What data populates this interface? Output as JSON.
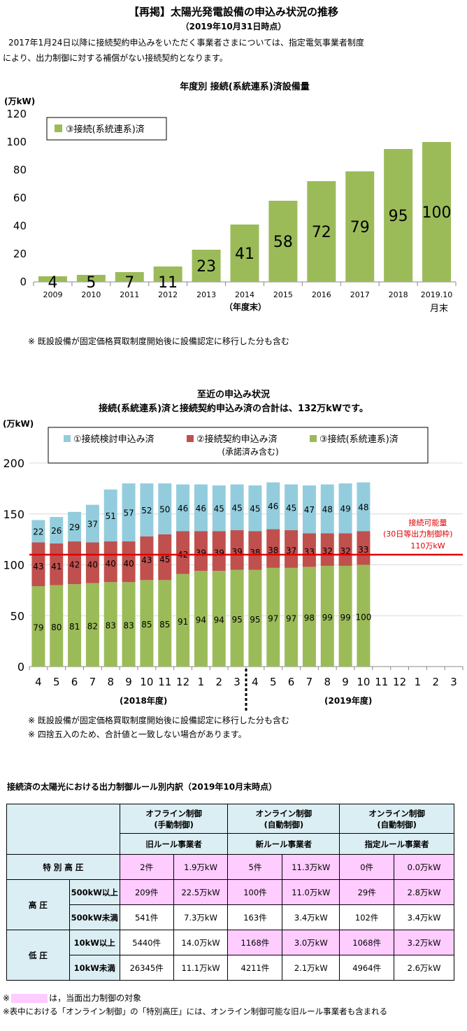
{
  "header": {
    "title": "【再掲】太陽光発電設備の申込み状況の推移",
    "date": "（2019年10月31日時点）",
    "note_line1": "2017年1月24日以降に接続契約申込みをいただく事業者さまについては、指定電気事業者制度",
    "note_line2": "により、出力制御に対する補償がない接続契約となります。"
  },
  "chart1": {
    "title": "年度別  接続(系統連系)済設備量",
    "unit": "(万kW)",
    "footnote": "※  既設設備が固定価格買取制度開始後に設備認定に移行した分も含む",
    "xsub": "（年度末）",
    "last_sub": "月末"
  },
  "chart2": {
    "title_line1": "至近の申込み状況",
    "title_line2": "接続(系統連系)済と接続契約申込み済の合計は、132万kWです。",
    "unit": "(万kW)",
    "legend_sub": "(承諾済み含む)",
    "capacity_label1": "接続可能量",
    "capacity_label2": "(30日等出力制御枠)",
    "capacity_label3": "110万kW",
    "fy1": "(2018年度)",
    "fy2": "(2019年度)",
    "footnote1": "※  既設設備が固定価格買取制度開始後に設備認定に移行した分も含む",
    "footnote2": "※  四捨五入のため、合計値と一致しない場合があります。"
  },
  "colors": {
    "green": "#9bbb59",
    "red": "#c0504d",
    "blue": "#93cddd",
    "line": "#e00000",
    "pink": "#ffccff",
    "header_blue": "#dbeef3"
  },
  "chart_data": [
    {
      "type": "bar",
      "title": "年度別  接続(系統連系)済設備量",
      "ylabel": "(万kW)",
      "xlabel": "（年度末）",
      "categories": [
        "2009",
        "2010",
        "2011",
        "2012",
        "2013",
        "2014",
        "2015",
        "2016",
        "2017",
        "2018",
        "2019.10"
      ],
      "series": [
        {
          "name": "③接続(系統連系)済",
          "values": [
            4,
            5,
            7,
            11,
            23,
            41,
            58,
            72,
            79,
            95,
            100
          ]
        }
      ],
      "ylim": [
        0,
        120
      ],
      "yticks": [
        0,
        20,
        40,
        60,
        80,
        100,
        120
      ],
      "grid": false,
      "legend": "top-left"
    },
    {
      "type": "bar",
      "stacked": true,
      "title": "至近の申込み状況",
      "ylabel": "(万kW)",
      "categories": [
        "4",
        "5",
        "6",
        "7",
        "8",
        "9",
        "10",
        "11",
        "12",
        "1",
        "2",
        "3",
        "4",
        "5",
        "6",
        "7",
        "8",
        "9",
        "10",
        "11",
        "12",
        "1",
        "2",
        "3"
      ],
      "series": [
        {
          "name": "③接続(系統連系)済",
          "values": [
            79,
            80,
            81,
            82,
            83,
            83,
            85,
            85,
            91,
            94,
            94,
            95,
            95,
            97,
            97,
            98,
            99,
            99,
            100,
            null,
            null,
            null,
            null,
            null
          ]
        },
        {
          "name": "②接続契約申込み済",
          "values": [
            43,
            41,
            42,
            40,
            40,
            40,
            43,
            45,
            42,
            39,
            39,
            39,
            38,
            38,
            37,
            33,
            32,
            32,
            33,
            null,
            null,
            null,
            null,
            null
          ]
        },
        {
          "name": "①接続検討申込み済",
          "values": [
            22,
            26,
            29,
            37,
            51,
            57,
            52,
            50,
            46,
            46,
            45,
            45,
            45,
            46,
            45,
            47,
            48,
            49,
            48,
            null,
            null,
            null,
            null,
            null
          ]
        }
      ],
      "reference_line": {
        "value": 110,
        "label": "110万kW"
      },
      "ylim": [
        0,
        200
      ],
      "yticks": [
        0,
        50,
        100,
        150,
        200
      ],
      "grid": true,
      "legend": "top"
    }
  ],
  "table": {
    "title": "接続済の太陽光における出力制御ルール別内訳（2019年10月末時点）",
    "groups": [
      {
        "line1": "オフライン制御",
        "line2": "(手動制御)",
        "sub": "旧ルール事業者"
      },
      {
        "line1": "オンライン制御",
        "line2": "(自動制御)",
        "sub": "新ルール事業者"
      },
      {
        "line1": "オンライン制御",
        "line2": "(自動制御)",
        "sub": "指定ルール事業者"
      }
    ],
    "cat_tokubetsu": "特 別 高 圧",
    "cat_kouatsu": "高  圧",
    "cat_teiatsu": "低  圧",
    "rows": [
      {
        "label": "",
        "cells": [
          "2件",
          "1.9万kW",
          "5件",
          "11.3万kW",
          "0件",
          "0.0万kW"
        ]
      },
      {
        "label": "500kW以上",
        "cells": [
          "209件",
          "22.5万kW",
          "100件",
          "11.0万kW",
          "29件",
          "2.8万kW"
        ]
      },
      {
        "label": "500kW未満",
        "cells": [
          "541件",
          "7.3万kW",
          "163件",
          "3.4万kW",
          "102件",
          "3.4万kW"
        ]
      },
      {
        "label": "10kW以上",
        "cells": [
          "5440件",
          "14.0万kW",
          "1168件",
          "3.0万kW",
          "1068件",
          "3.2万kW"
        ]
      },
      {
        "label": "10kW未満",
        "cells": [
          "26345件",
          "11.1万kW",
          "4211件",
          "2.1万kW",
          "4964件",
          "2.6万kW"
        ]
      }
    ],
    "note1_prefix": "※",
    "note1_suffix": "は，当面出力制御の対象",
    "note2": "※表中における「オンライン制御」の「特別高圧」には、オンライン制御可能な旧ルール事業者も含まれる"
  }
}
